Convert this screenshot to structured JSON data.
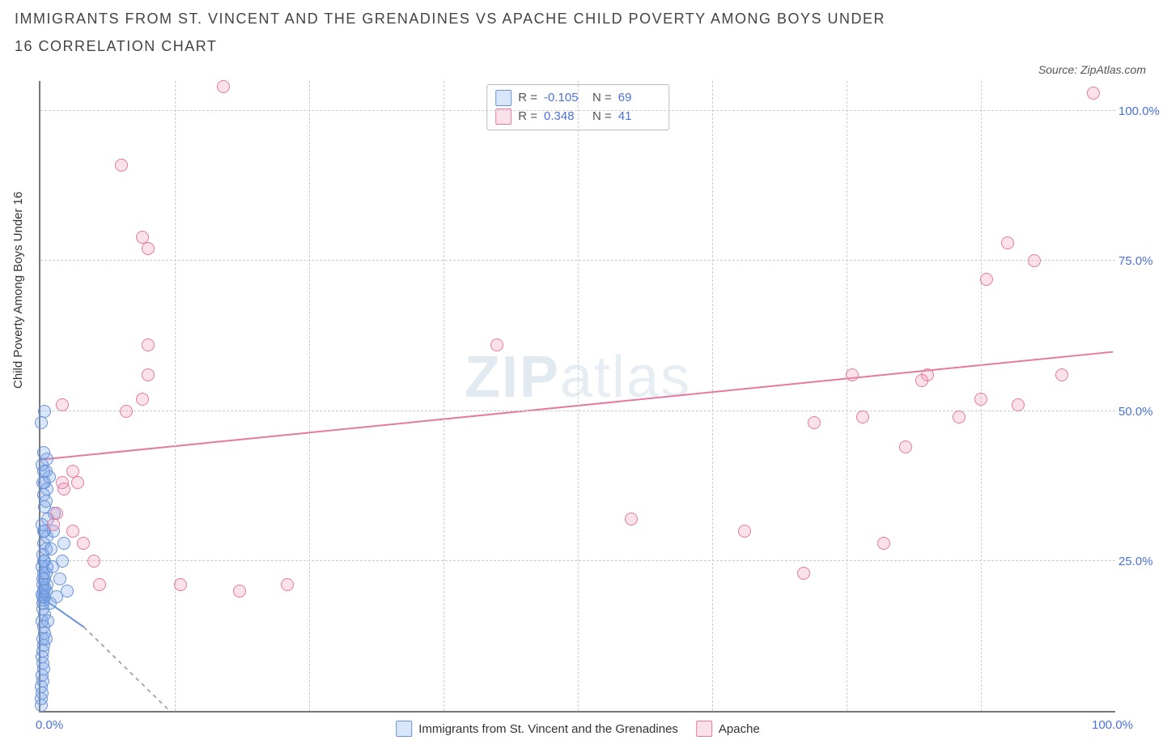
{
  "title": "IMMIGRANTS FROM ST. VINCENT AND THE GRENADINES VS APACHE CHILD POVERTY AMONG BOYS UNDER 16 CORRELATION CHART",
  "source": "Source: ZipAtlas.com",
  "ylabel": "Child Poverty Among Boys Under 16",
  "watermark_a": "ZIP",
  "watermark_b": "atlas",
  "chart": {
    "type": "scatter",
    "xlim": [
      0,
      100
    ],
    "ylim": [
      0,
      105
    ],
    "xtick_origin": "0.0%",
    "xtick_end": "100.0%",
    "yticks": [
      {
        "v": 25,
        "label": "25.0%"
      },
      {
        "v": 50,
        "label": "50.0%"
      },
      {
        "v": 75,
        "label": "75.0%"
      },
      {
        "v": 100,
        "label": "100.0%"
      }
    ],
    "xgrid": [
      12.5,
      25,
      37.5,
      50,
      62.5,
      75,
      87.5
    ],
    "grid_color": "#cccccc",
    "background_color": "#ffffff",
    "axis_color": "#777777",
    "marker_radius": 8,
    "marker_border_width": 1.3,
    "series": [
      {
        "name": "Immigrants from St. Vincent and the Grenadines",
        "fill": "rgba(120,160,230,0.28)",
        "stroke": "#6a93d8",
        "R": "-0.105",
        "N": "69",
        "trend": {
          "x1": 0,
          "y1": 19,
          "x2": 4,
          "y2": 14
        },
        "trend_ext": {
          "x1": 4,
          "y1": 14,
          "x2": 12,
          "y2": 0
        },
        "points": [
          [
            0.1,
            1
          ],
          [
            0.1,
            2
          ],
          [
            0.15,
            3
          ],
          [
            0.1,
            4
          ],
          [
            0.2,
            5
          ],
          [
            0.15,
            6
          ],
          [
            0.3,
            7
          ],
          [
            0.2,
            8
          ],
          [
            0.15,
            9
          ],
          [
            0.25,
            10
          ],
          [
            0.3,
            11
          ],
          [
            0.2,
            12
          ],
          [
            0.4,
            13
          ],
          [
            0.3,
            14
          ],
          [
            0.15,
            15
          ],
          [
            0.35,
            16
          ],
          [
            0.2,
            17
          ],
          [
            0.25,
            18
          ],
          [
            0.3,
            18.5
          ],
          [
            0.4,
            19
          ],
          [
            0.2,
            19
          ],
          [
            0.15,
            19.5
          ],
          [
            0.5,
            20
          ],
          [
            0.3,
            20
          ],
          [
            0.35,
            20.5
          ],
          [
            0.6,
            21
          ],
          [
            0.25,
            21
          ],
          [
            0.4,
            22
          ],
          [
            0.2,
            22
          ],
          [
            0.3,
            23
          ],
          [
            0.5,
            23
          ],
          [
            0.15,
            24
          ],
          [
            0.6,
            24
          ],
          [
            0.3,
            25
          ],
          [
            0.4,
            25
          ],
          [
            0.25,
            26
          ],
          [
            0.5,
            27
          ],
          [
            0.3,
            28
          ],
          [
            0.6,
            29
          ],
          [
            0.4,
            30
          ],
          [
            0.3,
            30
          ],
          [
            0.15,
            31
          ],
          [
            0.7,
            32
          ],
          [
            0.35,
            34
          ],
          [
            0.5,
            35
          ],
          [
            0.3,
            36
          ],
          [
            0.6,
            37
          ],
          [
            0.4,
            38
          ],
          [
            0.2,
            38
          ],
          [
            0.8,
            39
          ],
          [
            0.5,
            40
          ],
          [
            0.3,
            40
          ],
          [
            0.15,
            41
          ],
          [
            0.6,
            42
          ],
          [
            0.3,
            43
          ],
          [
            1.0,
            27
          ],
          [
            1.2,
            30
          ],
          [
            1.3,
            33
          ],
          [
            1.5,
            19
          ],
          [
            1.8,
            22
          ],
          [
            2.0,
            25
          ],
          [
            2.2,
            28
          ],
          [
            2.5,
            20
          ],
          [
            0.1,
            48
          ],
          [
            0.4,
            50
          ],
          [
            0.5,
            12
          ],
          [
            0.7,
            15
          ],
          [
            0.9,
            18
          ],
          [
            1.1,
            24
          ]
        ]
      },
      {
        "name": "Apache",
        "fill": "rgba(240,150,180,0.28)",
        "stroke": "#e47aa0",
        "R": "0.348",
        "N": "41",
        "trend": {
          "x1": 0,
          "y1": 42,
          "x2": 100,
          "y2": 60
        },
        "points": [
          [
            1.2,
            31
          ],
          [
            1.5,
            33
          ],
          [
            2.0,
            38
          ],
          [
            2.2,
            37
          ],
          [
            3.0,
            30
          ],
          [
            3.0,
            40
          ],
          [
            3.5,
            38
          ],
          [
            4.0,
            28
          ],
          [
            5.0,
            25
          ],
          [
            5.5,
            21
          ],
          [
            2.0,
            51
          ],
          [
            7.5,
            91
          ],
          [
            8.0,
            50
          ],
          [
            9.5,
            52
          ],
          [
            10.0,
            77
          ],
          [
            9.5,
            79
          ],
          [
            10.0,
            61
          ],
          [
            10.0,
            56
          ],
          [
            13.0,
            21
          ],
          [
            17.0,
            104
          ],
          [
            18.5,
            20
          ],
          [
            23.0,
            21
          ],
          [
            42.5,
            61
          ],
          [
            55.0,
            32
          ],
          [
            65.5,
            30
          ],
          [
            71.0,
            23
          ],
          [
            72.0,
            48
          ],
          [
            75.5,
            56
          ],
          [
            76.5,
            49
          ],
          [
            78.5,
            28
          ],
          [
            80.5,
            44
          ],
          [
            82.5,
            56
          ],
          [
            82.0,
            55
          ],
          [
            85.5,
            49
          ],
          [
            87.5,
            52
          ],
          [
            88.0,
            72
          ],
          [
            90.0,
            78
          ],
          [
            91.0,
            51
          ],
          [
            92.5,
            75
          ],
          [
            95.0,
            56
          ],
          [
            98.0,
            103
          ]
        ]
      }
    ],
    "legend_top": {
      "key_r": "R =",
      "key_n": "N ="
    }
  }
}
